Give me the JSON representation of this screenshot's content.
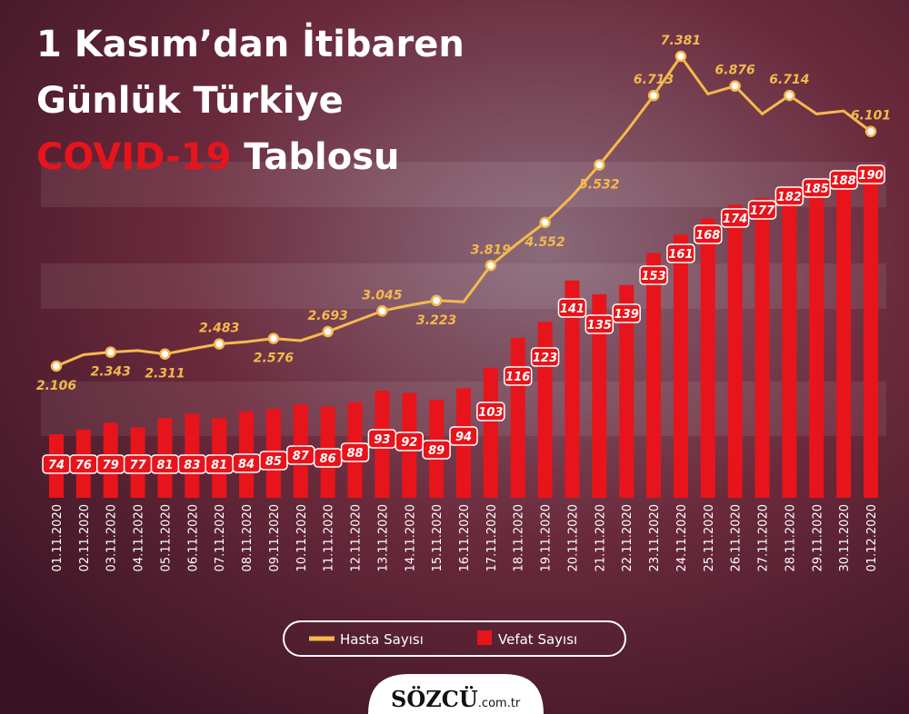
{
  "chart_data": {
    "type": "bar-line",
    "title_line1": "1 Kasım’dan İtibaren",
    "title_line2": "Günlük Türkiye",
    "title_highlight": "COVID-19",
    "title_rest": "Tablosu",
    "categories": [
      "01.11.2020",
      "02.11.2020",
      "03.11.2020",
      "04.11.2020",
      "05.11.2020",
      "06.11.2020",
      "07.11.2020",
      "08.11.2020",
      "09.11.2020",
      "10.11.2020",
      "11.11.2020",
      "12.11.2020",
      "13.11.2020",
      "14.11.2020",
      "15.11.2020",
      "16.11.2020",
      "17.11.2020",
      "18.11.2020",
      "19.11.2020",
      "20.11.2020",
      "21.11.2020",
      "22.11.2020",
      "23.11.2020",
      "24.11.2020",
      "25.11.2020",
      "26.11.2020",
      "27.11.2020",
      "28.11.2020",
      "29.11.2020",
      "30.11.2020",
      "01.12.2020"
    ],
    "series": [
      {
        "name": "Hasta Sayısı",
        "color": "#f5b94e",
        "kind": "line",
        "values": [
          2106,
          2300,
          2343,
          2370,
          2311,
          2400,
          2483,
          2520,
          2576,
          2540,
          2693,
          2870,
          3045,
          3140,
          3223,
          3200,
          3819,
          4200,
          4552,
          5000,
          5532,
          6100,
          6713,
          7381,
          6740,
          6876,
          6400,
          6714,
          6400,
          6450,
          6101
        ],
        "value_labels": [
          "2.106",
          null,
          "2.343",
          null,
          "2.311",
          null,
          "2.483",
          null,
          "2.576",
          null,
          "2.693",
          null,
          "3.045",
          null,
          "3.223",
          null,
          "3.819",
          null,
          "4.552",
          null,
          "5.532",
          null,
          "6.713",
          "7.381",
          null,
          "6.876",
          null,
          "6.714",
          null,
          null,
          "6.101"
        ]
      },
      {
        "name": "Vefat Sayısı",
        "color": "#e8141b",
        "kind": "bar",
        "values": [
          74,
          76,
          79,
          77,
          81,
          83,
          81,
          84,
          85,
          87,
          86,
          88,
          93,
          92,
          89,
          94,
          103,
          116,
          123,
          141,
          135,
          139,
          153,
          161,
          168,
          174,
          177,
          182,
          185,
          188,
          190
        ]
      }
    ],
    "brand": "SÖZCÜ",
    "brand_suffix": ".com.tr"
  }
}
